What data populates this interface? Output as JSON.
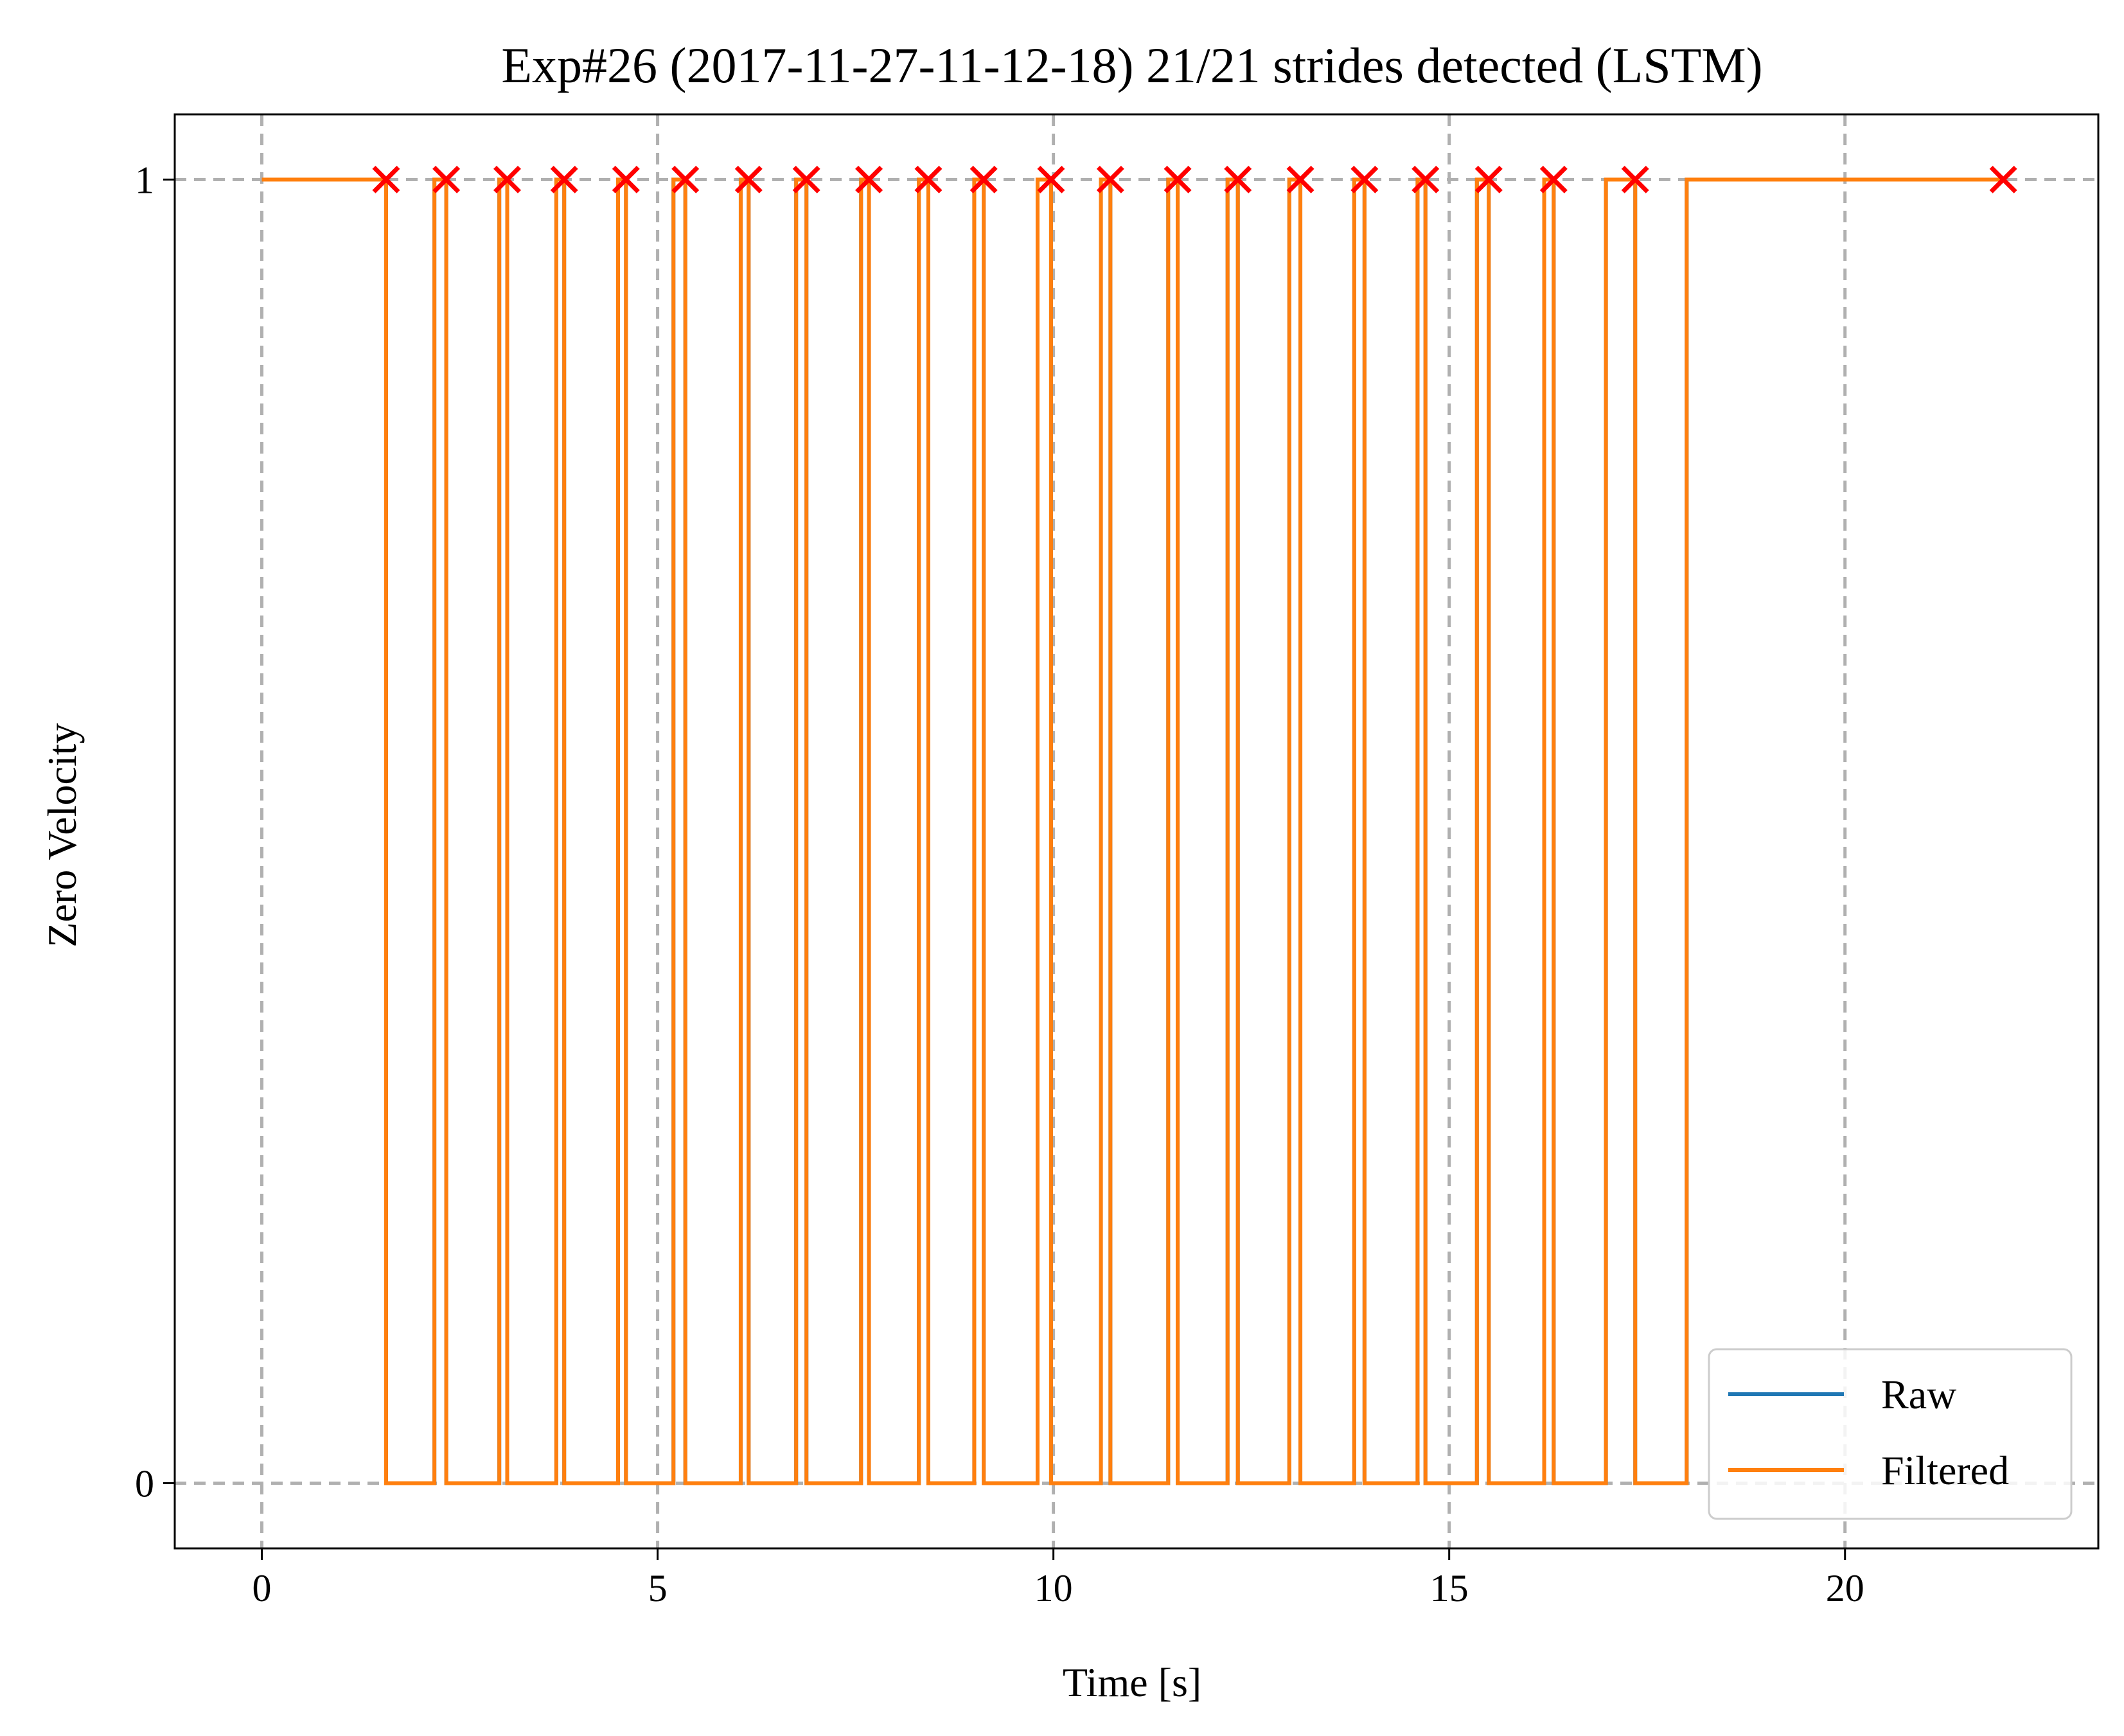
{
  "chart_data": {
    "type": "line",
    "title": "Exp#26 (2017-11-27-11-12-18) 21/21 strides detected (LSTM)",
    "xlabel": "Time [s]",
    "ylabel": "Zero Velocity",
    "xlim": [
      -1.1,
      23.2
    ],
    "ylim": [
      -0.05,
      1.05
    ],
    "xticks": [
      0,
      5,
      10,
      15,
      20
    ],
    "xtick_labels": [
      "0",
      "5",
      "10",
      "15",
      "20"
    ],
    "yticks": [
      0,
      1
    ],
    "ytick_labels": [
      "0",
      "1"
    ],
    "grid": true,
    "grid_style": "dashed",
    "legend_position": "lower-right",
    "series": [
      {
        "name": "Raw",
        "color": "#1f77b4",
        "style": "step",
        "x": [
          0,
          1.57,
          2.18,
          2.33,
          3.0,
          3.1,
          3.72,
          3.82,
          4.5,
          4.6,
          5.2,
          5.35,
          6.05,
          6.15,
          6.75,
          6.88,
          7.57,
          7.67,
          8.3,
          8.42,
          9.0,
          9.12,
          9.8,
          9.97,
          10.6,
          10.72,
          11.45,
          11.57,
          12.2,
          12.33,
          12.98,
          13.12,
          13.8,
          13.93,
          14.6,
          14.7,
          15.35,
          15.5,
          16.2,
          16.32,
          16.98,
          17.35,
          18.0,
          22.0
        ],
        "y": [
          1,
          0,
          1,
          0,
          1,
          0,
          1,
          0,
          1,
          0,
          1,
          0,
          1,
          0,
          1,
          0,
          1,
          0,
          1,
          0,
          1,
          0,
          1,
          0,
          1,
          0,
          1,
          0,
          1,
          0,
          1,
          0,
          1,
          0,
          1,
          0,
          1,
          0,
          1,
          0,
          1,
          0,
          1,
          1
        ]
      },
      {
        "name": "Filtered",
        "color": "#ff7f0e",
        "style": "step",
        "x": [
          0,
          1.57,
          2.18,
          2.33,
          3.0,
          3.1,
          3.72,
          3.82,
          4.5,
          4.6,
          5.2,
          5.35,
          6.05,
          6.15,
          6.75,
          6.88,
          7.57,
          7.67,
          8.3,
          8.42,
          9.0,
          9.12,
          9.8,
          9.97,
          10.6,
          10.72,
          11.45,
          11.57,
          12.2,
          12.33,
          12.98,
          13.12,
          13.8,
          13.93,
          14.6,
          14.7,
          15.35,
          15.5,
          16.2,
          16.32,
          16.98,
          17.35,
          18.0,
          22.0
        ],
        "y": [
          1,
          0,
          1,
          0,
          1,
          0,
          1,
          0,
          1,
          0,
          1,
          0,
          1,
          0,
          1,
          0,
          1,
          0,
          1,
          0,
          1,
          0,
          1,
          0,
          1,
          0,
          1,
          0,
          1,
          0,
          1,
          0,
          1,
          0,
          1,
          0,
          1,
          0,
          1,
          0,
          1,
          0,
          1,
          1
        ]
      }
    ],
    "markers": {
      "color": "#ff0000",
      "symbol": "x",
      "x": [
        1.57,
        2.33,
        3.1,
        3.82,
        4.6,
        5.35,
        6.15,
        6.88,
        7.67,
        8.42,
        9.12,
        9.97,
        10.72,
        11.57,
        12.33,
        13.12,
        13.93,
        14.7,
        15.5,
        16.32,
        17.35,
        22.0
      ],
      "y": [
        1,
        1,
        1,
        1,
        1,
        1,
        1,
        1,
        1,
        1,
        1,
        1,
        1,
        1,
        1,
        1,
        1,
        1,
        1,
        1,
        1,
        1
      ]
    }
  }
}
